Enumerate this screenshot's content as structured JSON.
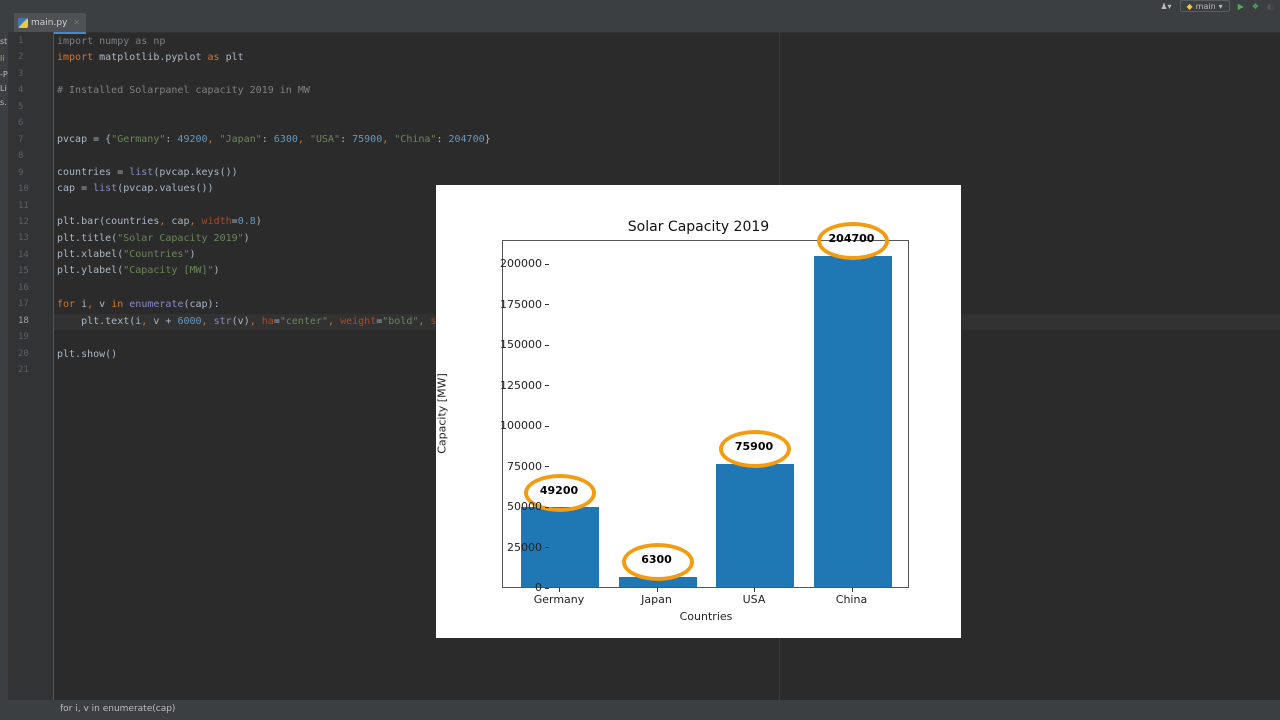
{
  "window": {
    "tab": {
      "label": "main.py",
      "icon": "python-file-icon"
    },
    "toolbar": {
      "branch": "main",
      "run_icon": "run-icon",
      "debug_icon": "debug-icon",
      "profile_icon": "profile-icon",
      "user_icon": "user-icon"
    },
    "left_fragments": [
      "st",
      "li",
      "-P",
      "Li",
      "s."
    ]
  },
  "editor": {
    "current_line": 18,
    "lines": [
      {
        "n": 1,
        "text": "import numpy as np"
      },
      {
        "n": 2,
        "text": "import matplotlib.pyplot as plt"
      },
      {
        "n": 3,
        "text": ""
      },
      {
        "n": 4,
        "text": "# Installed Solarpanel capacity 2019 in MW"
      },
      {
        "n": 5,
        "text": ""
      },
      {
        "n": 6,
        "text": ""
      },
      {
        "n": 7,
        "text": "pvcap = {\"Germany\": 49200, \"Japan\": 6300, \"USA\": 75900, \"China\": 204700}"
      },
      {
        "n": 8,
        "text": ""
      },
      {
        "n": 9,
        "text": "countries = list(pvcap.keys())"
      },
      {
        "n": 10,
        "text": "cap = list(pvcap.values())"
      },
      {
        "n": 11,
        "text": ""
      },
      {
        "n": 12,
        "text": "plt.bar(countries, cap, width=0.8)"
      },
      {
        "n": 13,
        "text": "plt.title(\"Solar Capacity 2019\")"
      },
      {
        "n": 14,
        "text": "plt.xlabel(\"Countries\")"
      },
      {
        "n": 15,
        "text": "plt.ylabel(\"Capacity [MW]\")"
      },
      {
        "n": 16,
        "text": ""
      },
      {
        "n": 17,
        "text": "for i, v in enumerate(cap):"
      },
      {
        "n": 18,
        "text": "    plt.text(i, v + 6000, str(v), ha=\"center\", weight=\"bold\", s"
      },
      {
        "n": 19,
        "text": ""
      },
      {
        "n": 20,
        "text": "plt.show()"
      },
      {
        "n": 21,
        "text": ""
      }
    ]
  },
  "status_bar": {
    "breadcrumb": "for i, v in enumerate(cap)"
  },
  "chart_data": {
    "type": "bar",
    "title": "Solar Capacity 2019",
    "xlabel": "Countries",
    "ylabel": "Capacity [MW]",
    "categories": [
      "Germany",
      "Japan",
      "USA",
      "China"
    ],
    "values": [
      49200,
      6300,
      75900,
      204700
    ],
    "value_labels": [
      "49200",
      "6300",
      "75900",
      "204700"
    ],
    "yticks": [
      0,
      25000,
      50000,
      75000,
      100000,
      125000,
      150000,
      175000,
      200000
    ],
    "ytick_labels": [
      "0",
      "25000",
      "50000",
      "75000",
      "100000",
      "125000",
      "150000",
      "175000",
      "200000"
    ],
    "ylim": [
      0,
      214935
    ],
    "bar_color": "#1f77b4",
    "annotation_color": "#f39c12",
    "grid": false,
    "legend": null
  }
}
